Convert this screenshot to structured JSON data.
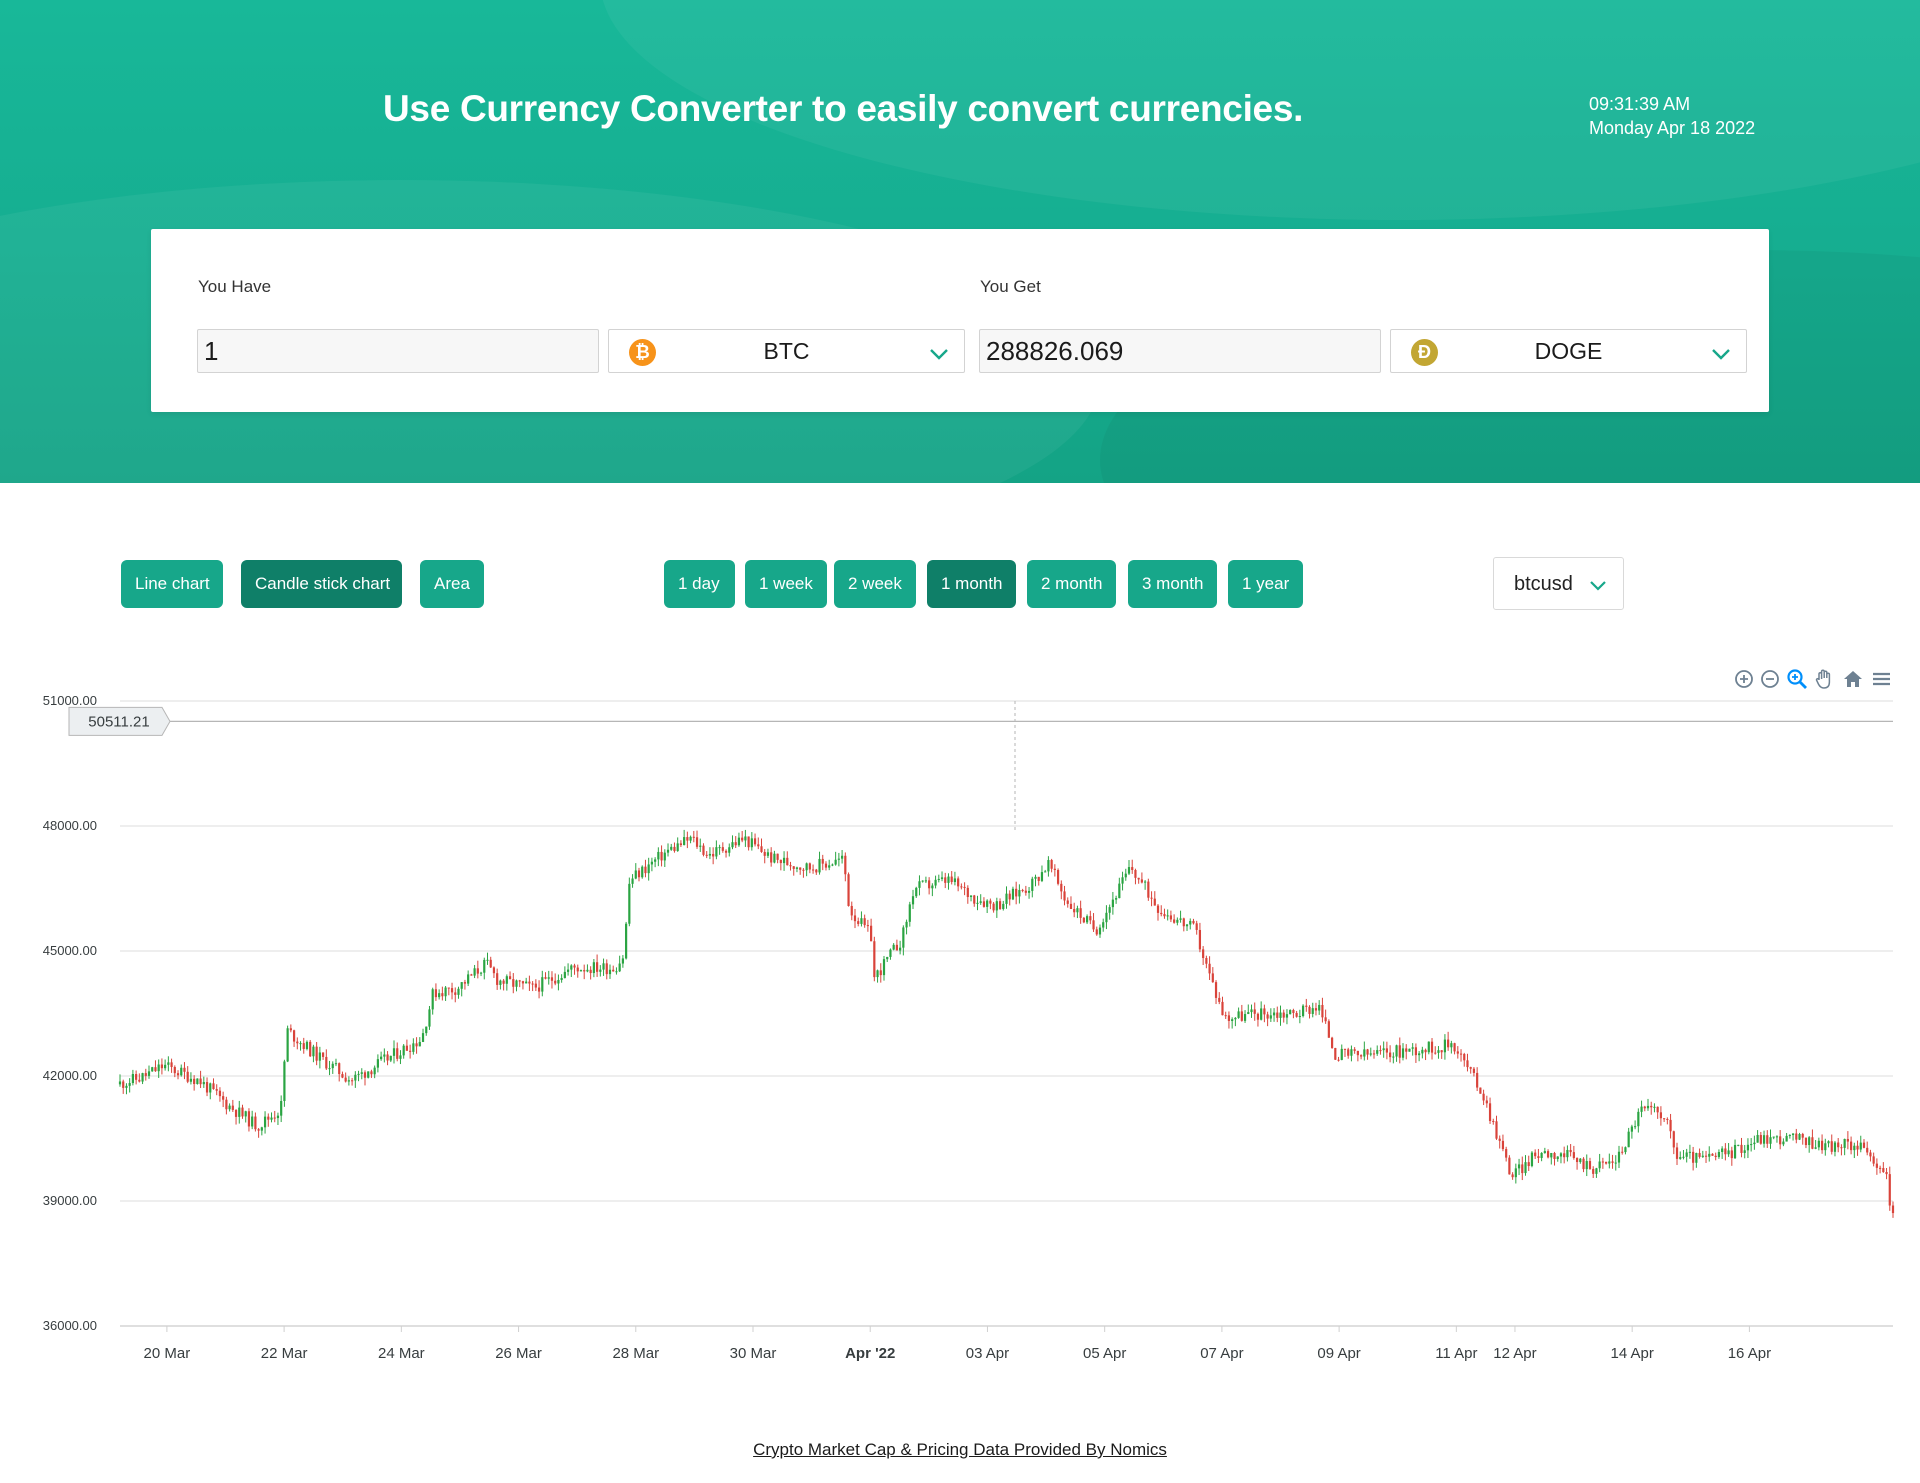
{
  "header": {
    "title": "Use Currency Converter to easily convert currencies.",
    "time": "09:31:39 AM",
    "date": "Monday Apr 18 2022"
  },
  "converter": {
    "have_label": "You Have",
    "have_amount": "1",
    "have_currency": "BTC",
    "get_label": "You Get",
    "get_amount": "288826.069",
    "get_currency": "DOGE"
  },
  "chart_types": [
    {
      "label": "Line chart",
      "active": false
    },
    {
      "label": "Candle stick chart",
      "active": true
    },
    {
      "label": "Area",
      "active": false
    }
  ],
  "ranges": [
    {
      "label": "1 day",
      "active": false
    },
    {
      "label": "1 week",
      "active": false
    },
    {
      "label": "2 week",
      "active": false
    },
    {
      "label": "1 month",
      "active": true
    },
    {
      "label": "2 month",
      "active": false
    },
    {
      "label": "3 month",
      "active": false
    },
    {
      "label": "1 year",
      "active": false
    }
  ],
  "pair_select": "btcusd",
  "toolbar_icons": [
    "zoom-in-icon",
    "zoom-out-icon",
    "zoom-selection-icon",
    "pan-icon",
    "home-icon",
    "menu-icon"
  ],
  "colors": {
    "brand": "#17a78a",
    "brand_dark": "#0f7f68",
    "up": "#2aa442",
    "down": "#d9433a"
  },
  "chart_data": {
    "type": "candlestick",
    "series_name": "btcusd",
    "ylim": [
      36000,
      51000
    ],
    "y_ticks": [
      "51000.00",
      "48000.00",
      "45000.00",
      "42000.00",
      "39000.00",
      "36000.00"
    ],
    "crosshair_value": "50511.21",
    "x_ticks": [
      {
        "label": "20 Mar",
        "day": 20,
        "bold": false
      },
      {
        "label": "22 Mar",
        "day": 22,
        "bold": false
      },
      {
        "label": "24 Mar",
        "day": 24,
        "bold": false
      },
      {
        "label": "26 Mar",
        "day": 26,
        "bold": false
      },
      {
        "label": "28 Mar",
        "day": 28,
        "bold": false
      },
      {
        "label": "30 Mar",
        "day": 30,
        "bold": false
      },
      {
        "label": "Apr '22",
        "day": 32,
        "bold": true
      },
      {
        "label": "03 Apr",
        "day": 34,
        "bold": false
      },
      {
        "label": "05 Apr",
        "day": 36,
        "bold": false
      },
      {
        "label": "07 Apr",
        "day": 38,
        "bold": false
      },
      {
        "label": "09 Apr",
        "day": 40,
        "bold": false
      },
      {
        "label": "11 Apr",
        "day": 42,
        "bold": false
      },
      {
        "label": "12 Apr",
        "day": 43,
        "bold": false
      },
      {
        "label": "14 Apr",
        "day": 45,
        "bold": false
      },
      {
        "label": "16 Apr",
        "day": 47,
        "bold": false
      }
    ],
    "x_range_days": [
      19.2,
      49.45
    ],
    "price_path": [
      [
        19.2,
        41800
      ],
      [
        19.6,
        41950
      ],
      [
        20.0,
        42250
      ],
      [
        20.6,
        41900
      ],
      [
        21.1,
        41300
      ],
      [
        21.6,
        40800
      ],
      [
        22.0,
        41200
      ],
      [
        22.1,
        43100
      ],
      [
        22.6,
        42500
      ],
      [
        23.2,
        41900
      ],
      [
        23.8,
        42400
      ],
      [
        24.4,
        42900
      ],
      [
        24.6,
        44000
      ],
      [
        25.0,
        44100
      ],
      [
        25.5,
        44700
      ],
      [
        25.7,
        44300
      ],
      [
        26.3,
        44100
      ],
      [
        27.0,
        44600
      ],
      [
        27.7,
        44600
      ],
      [
        27.85,
        44900
      ],
      [
        27.95,
        46700
      ],
      [
        28.6,
        47400
      ],
      [
        29.0,
        47700
      ],
      [
        29.3,
        47300
      ],
      [
        29.9,
        47700
      ],
      [
        30.4,
        47200
      ],
      [
        31.0,
        47000
      ],
      [
        31.6,
        47200
      ],
      [
        31.7,
        46000
      ],
      [
        32.1,
        45300
      ],
      [
        32.1,
        44300
      ],
      [
        32.6,
        45300
      ],
      [
        32.8,
        46500
      ],
      [
        33.4,
        46700
      ],
      [
        33.8,
        46300
      ],
      [
        34.2,
        46100
      ],
      [
        34.8,
        46600
      ],
      [
        35.1,
        47100
      ],
      [
        35.4,
        46200
      ],
      [
        35.9,
        45500
      ],
      [
        36.5,
        47000
      ],
      [
        37.0,
        46000
      ],
      [
        37.6,
        45500
      ],
      [
        37.8,
        44600
      ],
      [
        38.1,
        43400
      ],
      [
        38.7,
        43500
      ],
      [
        39.3,
        43500
      ],
      [
        39.7,
        43700
      ],
      [
        40.0,
        42500
      ],
      [
        40.5,
        42500
      ],
      [
        41.1,
        42600
      ],
      [
        41.8,
        42700
      ],
      [
        42.0,
        42800
      ],
      [
        42.5,
        41600
      ],
      [
        42.7,
        40800
      ],
      [
        43.0,
        39600
      ],
      [
        43.5,
        40200
      ],
      [
        43.9,
        40100
      ],
      [
        44.4,
        39800
      ],
      [
        44.8,
        40000
      ],
      [
        45.2,
        41200
      ],
      [
        45.6,
        41100
      ],
      [
        45.8,
        40100
      ],
      [
        46.3,
        40000
      ],
      [
        46.8,
        40200
      ],
      [
        47.2,
        40500
      ],
      [
        47.8,
        40500
      ],
      [
        48.5,
        40300
      ],
      [
        49.0,
        40400
      ],
      [
        49.15,
        39800
      ],
      [
        49.4,
        39700
      ],
      [
        49.45,
        38800
      ]
    ]
  },
  "footer": {
    "credit": "Crypto Market Cap & Pricing Data Provided By Nomics"
  }
}
